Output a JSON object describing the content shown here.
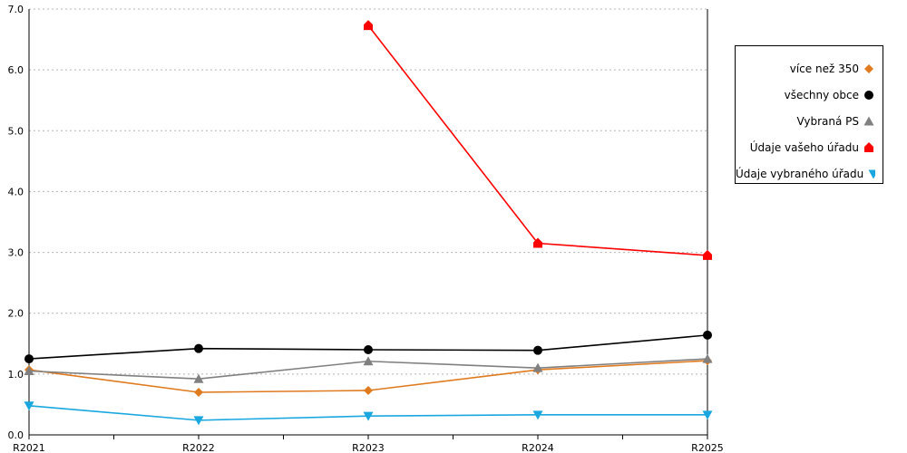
{
  "chart_data": {
    "type": "line",
    "categories": [
      "R2021",
      "R2022",
      "R2023",
      "R2024",
      "R2025"
    ],
    "ylim": [
      0,
      7
    ],
    "yticks": [
      "0.0",
      "1.0",
      "2.0",
      "3.0",
      "4.0",
      "5.0",
      "6.0",
      "7.0"
    ],
    "grid": true,
    "legend_position": "right",
    "series": [
      {
        "name": "více než 350",
        "color": "#e07a1f",
        "marker": "diamond",
        "values": [
          1.07,
          0.7,
          0.73,
          1.07,
          1.22
        ]
      },
      {
        "name": "všechny obce",
        "color": "#000000",
        "marker": "circle",
        "values": [
          1.25,
          1.42,
          1.4,
          1.39,
          1.64
        ]
      },
      {
        "name": "Vybraná PS",
        "color": "#808080",
        "marker": "triangle-up",
        "values": [
          1.05,
          0.92,
          1.21,
          1.1,
          1.25
        ]
      },
      {
        "name": "Údaje vašeho úřadu",
        "color": "#ff0000",
        "marker": "house",
        "values": [
          null,
          null,
          6.73,
          3.15,
          2.95
        ]
      },
      {
        "name": "Údaje vybraného úřadu",
        "color": "#1aa7e0",
        "marker": "triangle-down",
        "values": [
          0.48,
          0.24,
          0.31,
          0.33,
          0.33
        ]
      }
    ]
  }
}
